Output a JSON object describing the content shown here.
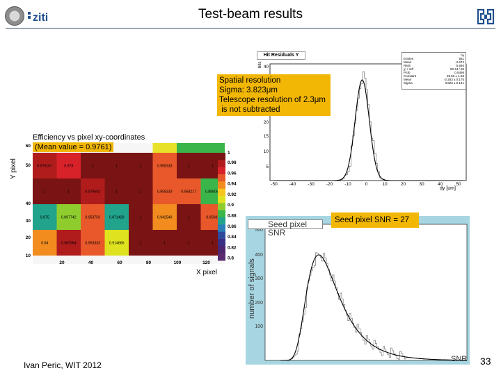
{
  "header": {
    "title": "Test-beam results",
    "logo_text": "ziti"
  },
  "notes": {
    "spatial_lines": [
      "Spatial resolution",
      "Sigma: 3.823μm",
      "Telescope resolution of 2.3μm",
      " is not subtracted"
    ],
    "snr": "Seed pixel SNR = 27"
  },
  "residuals": {
    "title": "Hit Residuals Y",
    "stats_header": "hy",
    "stats": [
      [
        "Entries",
        "551"
      ],
      [
        "Mean",
        "-2.674"
      ],
      [
        "RMS",
        "5.694"
      ],
      [
        "χ² / ndf",
        "50.44 / 55"
      ],
      [
        "Prob",
        "0.5498"
      ],
      [
        "Constant",
        "25.52 ± 1.53"
      ],
      [
        "Mean",
        "-2.253 ± 0.175"
      ],
      [
        "Sigma",
        "3.823 ± 0.141"
      ]
    ],
    "ytick_labels": [
      "40",
      "35",
      "25",
      "20",
      "15",
      "10",
      "5"
    ],
    "xtick_labels": [
      "-50",
      "-40",
      "-30",
      "-20",
      "-10",
      "0",
      "10",
      "20",
      "30",
      "40",
      "50"
    ],
    "xlabel": "dy [um]",
    "ylabel": "hits"
  },
  "efficiency": {
    "title": "Efficiency vs pixel xy-coordinates",
    "mean_text": "(Mean value = 0.9761)",
    "ylabel": "Y pixel",
    "xlabel": "X pixel",
    "ytick_labels": [
      "60",
      "50",
      "40",
      "30",
      "20",
      "10"
    ],
    "xtick_labels": [
      "20",
      "40",
      "60",
      "80",
      "100",
      "120"
    ],
    "scale_top_label": "1",
    "scale_labels": [
      "0.98",
      "0.96",
      "0.94",
      "0.92",
      "0.9",
      "0.88",
      "0.86",
      "0.84",
      "0.82",
      "0.8"
    ],
    "rows": [
      [
        "0.979167",
        "0.978",
        "1",
        "1",
        "1",
        "0.958333",
        "1",
        "1"
      ],
      [
        "1",
        "1",
        "0.979592",
        "1",
        "1",
        "0.958333",
        "0.958217",
        "0.888057"
      ],
      [
        "0.875",
        "0.897742",
        "0.953759",
        "0.871429",
        "1",
        "0.942549",
        "1",
        "0.95081"
      ],
      [
        "0.94",
        "0.982964",
        "0.953333",
        "0.914666",
        "1",
        "1",
        "1",
        "1"
      ]
    ]
  },
  "snr_hist": {
    "title": "Seed pixel SNR",
    "ytick_labels": [
      "500",
      "400",
      "300",
      "200",
      "100"
    ],
    "ylabel": "number of signals",
    "xlabel": "SNR"
  },
  "footer": {
    "author": "Ivan Peric, WIT 2012",
    "page": "33"
  },
  "colors": {
    "annotation": "#f2b705",
    "snr_background": "#a7d6e2",
    "rule": "#9aa6b8"
  }
}
